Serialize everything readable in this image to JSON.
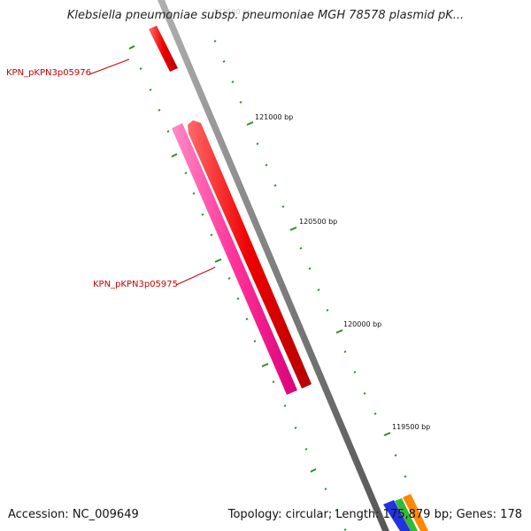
{
  "title": "Klebsiella pneumoniae subsp. pneumoniae MGH 78578 plasmid pK...",
  "footer": {
    "accession": "Accession: NC_009649",
    "summary": "Topology: circular; Length: 175,879 bp; Genes: 178"
  },
  "genes": [
    {
      "label": "KPN_pKPN3p05976",
      "color": "#ee0000",
      "strand": "reverse"
    },
    {
      "label": "KPN_pKPN3p05975",
      "color": "#ee0000",
      "strand": "forward"
    }
  ],
  "scale_ticks": [
    {
      "label": "121000 bp"
    },
    {
      "label": "120500 bp"
    },
    {
      "label": "120000 bp"
    },
    {
      "label": "119500 bp"
    }
  ],
  "colors": {
    "backbone": "#808080",
    "gene_red": "#ee0000",
    "gene_pink": "#ff3399",
    "tick_green": "#2e8b2e",
    "edge_blue": "#2233dd",
    "edge_green": "#33bb33",
    "edge_orange": "#ff8800"
  }
}
